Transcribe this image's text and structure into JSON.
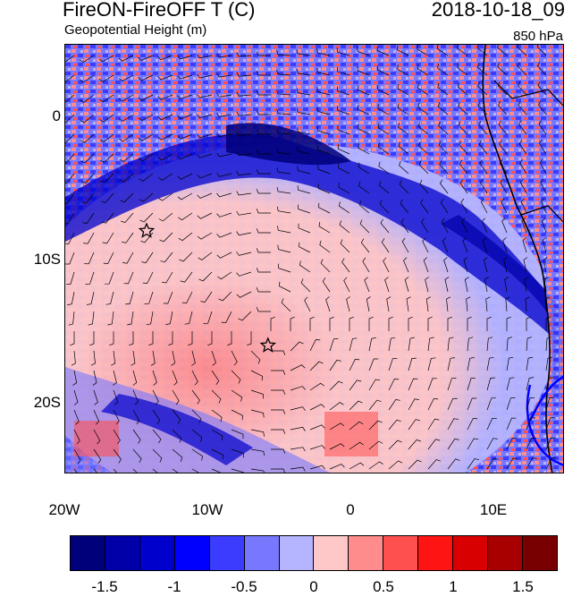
{
  "header": {
    "title": "FireON-FireOFF T (C)",
    "timestamp": "2018-10-18_09",
    "subtitle": "Geopotential Height (m)",
    "level": "850 hPa"
  },
  "map": {
    "region": "Southeast Atlantic / West Africa",
    "lat_labels": [
      "0",
      "10S",
      "20S"
    ],
    "lon_labels": [
      "20W",
      "10W",
      "0",
      "10E"
    ],
    "markers": [
      {
        "name": "star-marker-1",
        "lon": -14.3,
        "lat": -8.0
      },
      {
        "name": "star-marker-2",
        "lon": -5.8,
        "lat": -16.0
      }
    ]
  },
  "colorbar": {
    "colors": [
      "#00007a",
      "#0000a8",
      "#0000cc",
      "#0000ff",
      "#3c3cff",
      "#7878ff",
      "#b4b4ff",
      "#ffc8c8",
      "#ff8c8c",
      "#ff5050",
      "#ff1414",
      "#d80000",
      "#a80000",
      "#780000"
    ],
    "labels": [
      "-1.5",
      "-1",
      "-0.5",
      "0",
      "0.5",
      "1",
      "1.5"
    ]
  }
}
